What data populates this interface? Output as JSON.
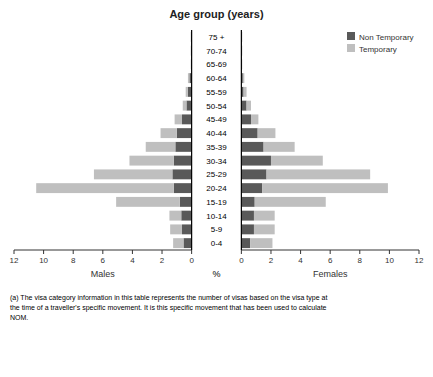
{
  "chart_data": [
    {
      "type": "bar",
      "orientation": "horizontal",
      "stacked": true,
      "title": "Age group (years)",
      "xlabel": "Males",
      "annotations": [
        "%",
        "(a) The visa category information in this table represents the number of visas based on the visa type at\nthe time of a traveller's specific movement. It is this specific movement that has been used to calculate\nNOM."
      ],
      "categories": [
        "75 +",
        "70-74",
        "65-69",
        "60-64",
        "55-59",
        "50-54",
        "45-49",
        "40-44",
        "35-39",
        "30-34",
        "25-29",
        "20-24",
        "15-19",
        "10-14",
        "5-9",
        "0-4"
      ],
      "xlim": [
        12,
        0
      ],
      "xticks": [
        0,
        2,
        4,
        6,
        8,
        10,
        12
      ],
      "series": [
        {
          "color": "#595959",
          "values": [
            0.05,
            0.05,
            0.05,
            0.15,
            0.25,
            0.35,
            0.65,
            1.0,
            1.1,
            1.2,
            1.3,
            1.2,
            0.8,
            0.7,
            0.65,
            0.55
          ]
        },
        {
          "color": "#bfbfbf",
          "values": [
            0.0,
            0.0,
            0.0,
            0.1,
            0.15,
            0.25,
            0.5,
            1.1,
            2.0,
            3.0,
            5.3,
            9.3,
            4.3,
            0.8,
            0.8,
            0.7
          ]
        }
      ]
    },
    {
      "type": "bar",
      "orientation": "horizontal",
      "stacked": true,
      "xlabel": "Females",
      "legend": "upper right",
      "categories": [
        "75 +",
        "70-74",
        "65-69",
        "60-64",
        "55-59",
        "50-54",
        "45-49",
        "40-44",
        "35-39",
        "30-34",
        "25-29",
        "20-24",
        "15-19",
        "10-14",
        "5-9",
        "0-4"
      ],
      "xlim": [
        0,
        12
      ],
      "xticks": [
        0,
        2,
        4,
        6,
        8,
        10,
        12
      ],
      "series": [
        {
          "name": "Non Temporary",
          "color": "#595959",
          "values": [
            0.05,
            0.05,
            0.05,
            0.1,
            0.15,
            0.35,
            0.65,
            1.1,
            1.5,
            2.0,
            1.7,
            1.4,
            0.9,
            0.85,
            0.85,
            0.6
          ]
        },
        {
          "name": "Temporary",
          "color": "#bfbfbf",
          "values": [
            0.0,
            0.0,
            0.0,
            0.1,
            0.2,
            0.3,
            0.5,
            1.2,
            2.1,
            3.5,
            7.0,
            8.5,
            4.8,
            1.4,
            1.4,
            1.5
          ]
        }
      ]
    }
  ]
}
